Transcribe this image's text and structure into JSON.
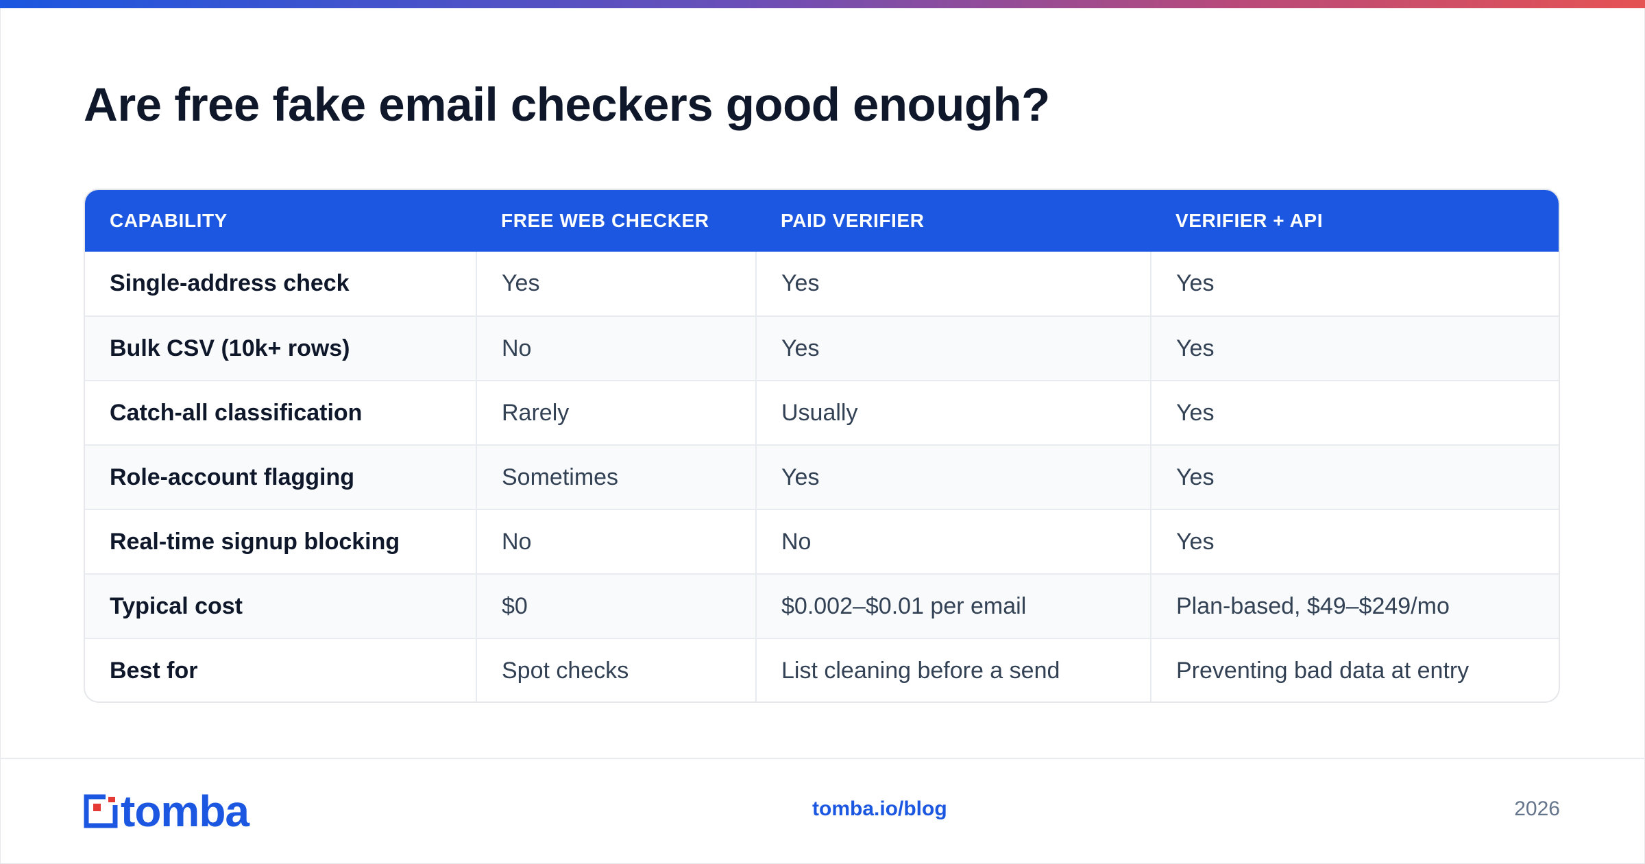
{
  "title": "Are free fake email checkers good enough?",
  "table": {
    "headers": [
      "CAPABILITY",
      "FREE WEB CHECKER",
      "PAID VERIFIER",
      "VERIFIER + API"
    ],
    "rows": [
      [
        "Single-address check",
        "Yes",
        "Yes",
        "Yes"
      ],
      [
        "Bulk CSV (10k+ rows)",
        "No",
        "Yes",
        "Yes"
      ],
      [
        "Catch-all classification",
        "Rarely",
        "Usually",
        "Yes"
      ],
      [
        "Role-account flagging",
        "Sometimes",
        "Yes",
        "Yes"
      ],
      [
        "Real-time signup blocking",
        "No",
        "No",
        "Yes"
      ],
      [
        "Typical cost",
        "$0",
        "$0.002–$0.01 per email",
        "Plan-based, $49–$249/mo"
      ],
      [
        "Best for",
        "Spot checks",
        "List cleaning before a send",
        "Preventing bad data at entry"
      ]
    ]
  },
  "footer": {
    "logo_text": "tomba",
    "link": "tomba.io/blog",
    "year": "2026"
  },
  "colors": {
    "accent": "#1b57e0",
    "logo_red": "#e53935",
    "title": "#0f172a"
  },
  "icons": {
    "logo_mark": "tomba-logo-icon"
  }
}
